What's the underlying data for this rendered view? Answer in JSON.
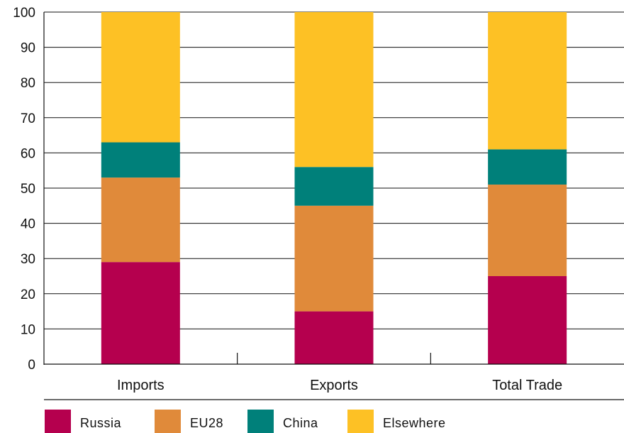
{
  "chart_data": {
    "type": "bar",
    "stacked": true,
    "categories": [
      "Imports",
      "Exports",
      "Total Trade"
    ],
    "series": [
      {
        "name": "Russia",
        "color": "#b5004e",
        "values": [
          29,
          15,
          25
        ]
      },
      {
        "name": "EU28",
        "color": "#e08a3a",
        "values": [
          24,
          30,
          26
        ]
      },
      {
        "name": "China",
        "color": "#00807a",
        "values": [
          10,
          11,
          10
        ]
      },
      {
        "name": "Elsewhere",
        "color": "#fdc125",
        "values": [
          37,
          44,
          39
        ]
      }
    ],
    "ylim": [
      0,
      100
    ],
    "yticks": [
      "0",
      "10",
      "20",
      "30",
      "40",
      "50",
      "60",
      "70",
      "80",
      "90",
      "100"
    ],
    "grid": true,
    "legend_position": "bottom"
  }
}
